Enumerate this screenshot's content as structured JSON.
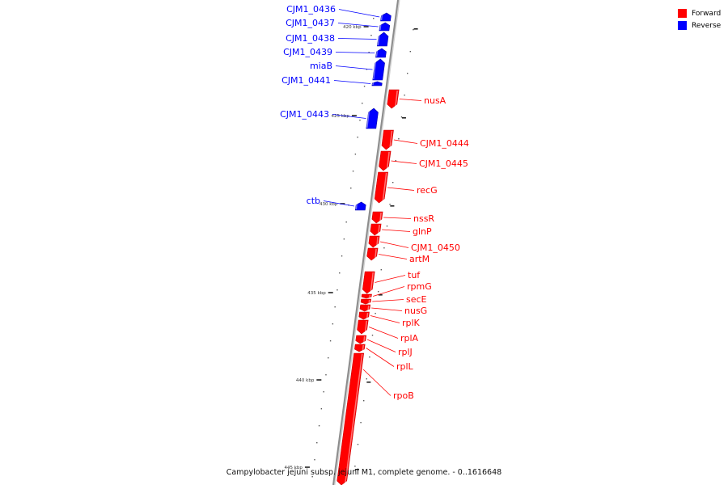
{
  "colors": {
    "forward": "#ff0000",
    "reverse": "#0000ff",
    "backbone": "#8c8c8c"
  },
  "legend": [
    {
      "label": "Forward",
      "strand": "forward"
    },
    {
      "label": "Reverse",
      "strand": "reverse"
    }
  ],
  "caption": "Campylobacter jejuni subsp. jejuni M1, complete genome. - 0..1616648",
  "ticks": [
    {
      "label": "420 kbp"
    },
    {
      "label": "425 kbp"
    },
    {
      "label": "430 kbp"
    },
    {
      "label": "435 kbp"
    },
    {
      "label": "440 kbp"
    },
    {
      "label": "445 kbp"
    }
  ],
  "genes": [
    {
      "name": "CJM1_0436",
      "strand": "reverse"
    },
    {
      "name": "CJM1_0437",
      "strand": "reverse"
    },
    {
      "name": "CJM1_0438",
      "strand": "reverse"
    },
    {
      "name": "CJM1_0439",
      "strand": "reverse"
    },
    {
      "name": "miaB",
      "strand": "reverse"
    },
    {
      "name": "CJM1_0441",
      "strand": "reverse"
    },
    {
      "name": "nusA",
      "strand": "forward"
    },
    {
      "name": "CJM1_0443",
      "strand": "reverse"
    },
    {
      "name": "CJM1_0444",
      "strand": "forward"
    },
    {
      "name": "CJM1_0445",
      "strand": "forward"
    },
    {
      "name": "recG",
      "strand": "forward"
    },
    {
      "name": "ctb",
      "strand": "reverse"
    },
    {
      "name": "nssR",
      "strand": "forward"
    },
    {
      "name": "glnP",
      "strand": "forward"
    },
    {
      "name": "CJM1_0450",
      "strand": "forward"
    },
    {
      "name": "artM",
      "strand": "forward"
    },
    {
      "name": "tuf",
      "strand": "forward"
    },
    {
      "name": "rpmG",
      "strand": "forward"
    },
    {
      "name": "secE",
      "strand": "forward"
    },
    {
      "name": "nusG",
      "strand": "forward"
    },
    {
      "name": "rplK",
      "strand": "forward"
    },
    {
      "name": "rplA",
      "strand": "forward"
    },
    {
      "name": "rplJ",
      "strand": "forward"
    },
    {
      "name": "rplL",
      "strand": "forward"
    },
    {
      "name": "rpoB",
      "strand": "forward"
    }
  ]
}
